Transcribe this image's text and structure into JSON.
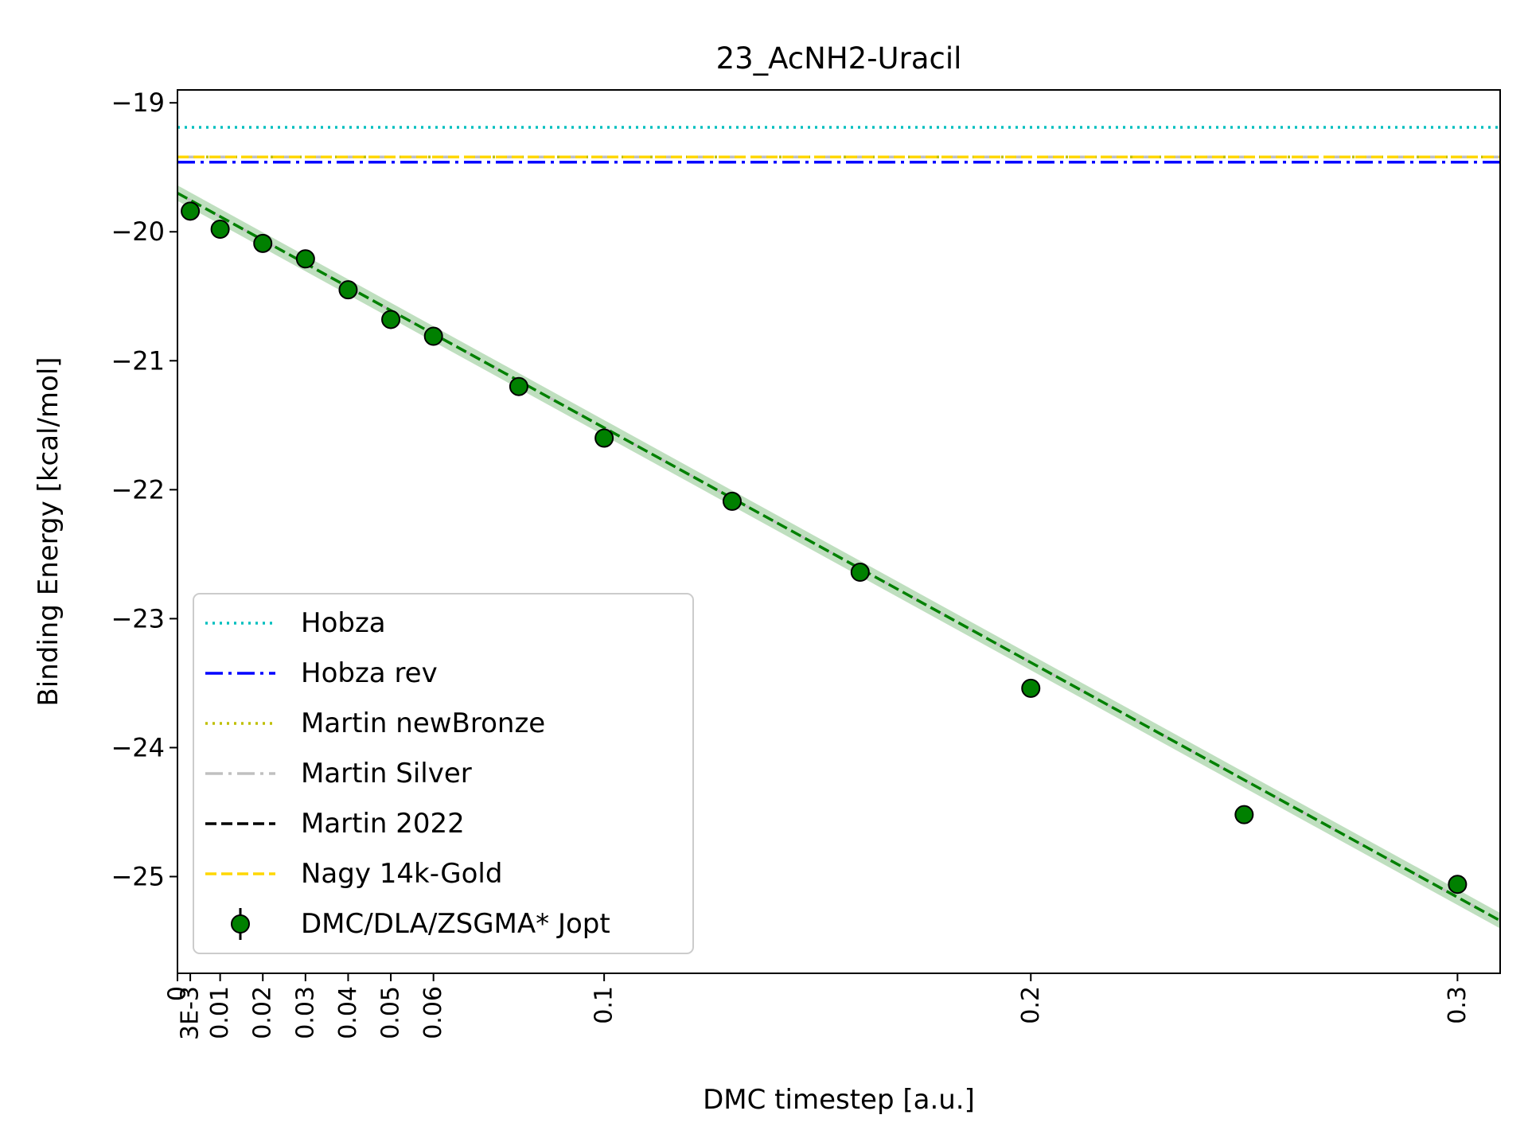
{
  "chart_data": {
    "type": "scatter",
    "title": "23_AcNH2-Uracil",
    "xlabel": "DMC timestep [a.u.]",
    "ylabel": "Binding Energy [kcal/mol]",
    "xlim": [
      0,
      0.31
    ],
    "ylim": [
      -25.75,
      -18.9
    ],
    "grid": false,
    "legend_position": "lower-left",
    "x_ticks": [
      0,
      0.003,
      0.01,
      0.02,
      0.03,
      0.04,
      0.05,
      0.06,
      0.1,
      0.2,
      0.3
    ],
    "x_tick_labels": [
      "0",
      "3E-3",
      "0.01",
      "0.02",
      "0.03",
      "0.04",
      "0.05",
      "0.06",
      "0.1",
      "0.2",
      "0.3"
    ],
    "y_ticks": [
      -19,
      -20,
      -21,
      -22,
      -23,
      -24,
      -25
    ],
    "y_tick_labels": [
      "−19",
      "−20",
      "−21",
      "−22",
      "−23",
      "−24",
      "−25"
    ],
    "reference_lines": [
      {
        "name": "Hobza",
        "y": -19.19,
        "color": "#00bfbf",
        "style": "dotted"
      },
      {
        "name": "Hobza rev",
        "y": -19.46,
        "color": "#0000ff",
        "style": "dashdot"
      },
      {
        "name": "Martin newBronze",
        "y": -19.42,
        "color": "#bfbf00",
        "style": "dotted"
      },
      {
        "name": "Martin Silver",
        "y": -19.42,
        "color": "#c0c0c0",
        "style": "dashdot"
      },
      {
        "name": "Martin 2022",
        "y": -19.42,
        "color": "#000000",
        "style": "dashed"
      },
      {
        "name": "Nagy 14k-Gold",
        "y": -19.42,
        "color": "#ffd700",
        "style": "dashed"
      }
    ],
    "series": [
      {
        "name": "DMC/DLA/ZSGMA* Jopt",
        "color": "#008000",
        "x": [
          0.003,
          0.01,
          0.02,
          0.03,
          0.04,
          0.05,
          0.06,
          0.08,
          0.1,
          0.13,
          0.16,
          0.2,
          0.25,
          0.3
        ],
        "y": [
          -19.84,
          -19.98,
          -20.09,
          -20.21,
          -20.45,
          -20.68,
          -20.81,
          -21.2,
          -21.6,
          -22.09,
          -22.64,
          -23.54,
          -24.52,
          -25.06
        ],
        "err": [
          0.03,
          0.03,
          0.03,
          0.03,
          0.03,
          0.03,
          0.03,
          0.03,
          0.03,
          0.03,
          0.03,
          0.06,
          0.07,
          0.05
        ]
      }
    ],
    "fit": {
      "intercept": -19.7,
      "slope": -18.2,
      "band": 0.06,
      "color": "#008000"
    }
  }
}
